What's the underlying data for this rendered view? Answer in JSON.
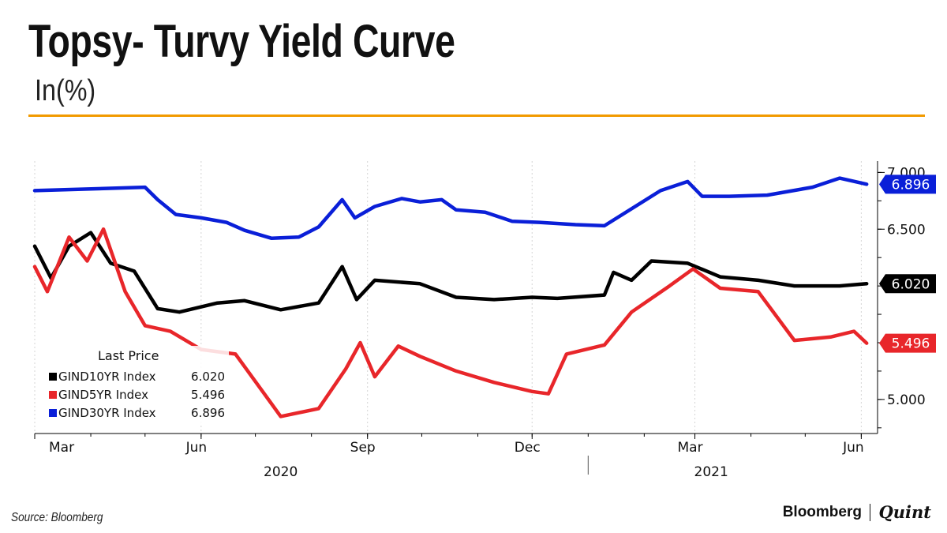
{
  "title": "Topsy- Turvy Yield Curve",
  "subtitle": "In(%)",
  "source": "Source: Bloomberg",
  "brand": {
    "primary": "Bloomberg",
    "secondary": "Quint"
  },
  "accent_color": "#f29a00",
  "chart_data": {
    "type": "line",
    "x_start": "2020-03-01",
    "x_end": "2021-06-10",
    "ylim": [
      4.7,
      7.1
    ],
    "yticks": [
      5.0,
      6.5,
      7.0
    ],
    "yticks_labels": [
      "5.000",
      "6.500",
      "7.000"
    ],
    "grid": true,
    "legend": {
      "title": "Last Price",
      "placement": "bottom-left",
      "entries": [
        {
          "label": "GIND10YR Index",
          "value": "6.020",
          "color": "#000000"
        },
        {
          "label": "GIND5YR Index",
          "value": "5.496",
          "color": "#e8262a"
        },
        {
          "label": "GIND30YR Index",
          "value": "6.896",
          "color": "#0a1fd8"
        }
      ]
    },
    "month_labels": [
      {
        "date": "2020-03-01",
        "label": "Mar"
      },
      {
        "date": "2020-06-01",
        "label": "Jun"
      },
      {
        "date": "2020-09-01",
        "label": "Sep"
      },
      {
        "date": "2020-12-01",
        "label": "Dec"
      },
      {
        "date": "2021-03-01",
        "label": "Mar"
      },
      {
        "date": "2021-06-01",
        "label": "Jun"
      }
    ],
    "year_labels": [
      {
        "date": "2020-07-15",
        "label": "2020"
      },
      {
        "date": "2021-03-10",
        "label": "2021"
      }
    ],
    "series": [
      {
        "name": "GIND30YR Index",
        "color": "#0a1fd8",
        "last": "6.896",
        "points": [
          [
            "2020-03-01",
            6.84
          ],
          [
            "2020-05-01",
            6.87
          ],
          [
            "2020-05-08",
            6.76
          ],
          [
            "2020-05-18",
            6.63
          ],
          [
            "2020-06-01",
            6.6
          ],
          [
            "2020-06-15",
            6.56
          ],
          [
            "2020-06-25",
            6.49
          ],
          [
            "2020-07-10",
            6.42
          ],
          [
            "2020-07-25",
            6.43
          ],
          [
            "2020-08-05",
            6.52
          ],
          [
            "2020-08-18",
            6.76
          ],
          [
            "2020-08-25",
            6.6
          ],
          [
            "2020-09-05",
            6.7
          ],
          [
            "2020-09-20",
            6.77
          ],
          [
            "2020-09-30",
            6.74
          ],
          [
            "2020-10-12",
            6.76
          ],
          [
            "2020-10-20",
            6.67
          ],
          [
            "2020-11-05",
            6.65
          ],
          [
            "2020-11-20",
            6.57
          ],
          [
            "2020-12-05",
            6.56
          ],
          [
            "2020-12-25",
            6.54
          ],
          [
            "2021-01-10",
            6.53
          ],
          [
            "2021-02-10",
            6.84
          ],
          [
            "2021-02-25",
            6.92
          ],
          [
            "2021-03-05",
            6.79
          ],
          [
            "2021-03-20",
            6.79
          ],
          [
            "2021-04-10",
            6.8
          ],
          [
            "2021-05-05",
            6.87
          ],
          [
            "2021-05-20",
            6.95
          ],
          [
            "2021-06-04",
            6.896
          ]
        ]
      },
      {
        "name": "GIND10YR Index",
        "color": "#000000",
        "last": "6.020",
        "points": [
          [
            "2020-03-01",
            6.35
          ],
          [
            "2020-03-10",
            6.07
          ],
          [
            "2020-03-20",
            6.35
          ],
          [
            "2020-04-01",
            6.47
          ],
          [
            "2020-04-12",
            6.2
          ],
          [
            "2020-04-25",
            6.13
          ],
          [
            "2020-05-08",
            5.8
          ],
          [
            "2020-05-20",
            5.77
          ],
          [
            "2020-06-10",
            5.85
          ],
          [
            "2020-06-25",
            5.87
          ],
          [
            "2020-07-15",
            5.79
          ],
          [
            "2020-08-05",
            5.85
          ],
          [
            "2020-08-18",
            6.17
          ],
          [
            "2020-08-26",
            5.88
          ],
          [
            "2020-09-05",
            6.05
          ],
          [
            "2020-09-30",
            6.02
          ],
          [
            "2020-10-20",
            5.9
          ],
          [
            "2020-11-10",
            5.88
          ],
          [
            "2020-12-01",
            5.9
          ],
          [
            "2020-12-15",
            5.89
          ],
          [
            "2021-01-10",
            5.92
          ],
          [
            "2021-01-15",
            6.12
          ],
          [
            "2021-01-25",
            6.05
          ],
          [
            "2021-02-05",
            6.22
          ],
          [
            "2021-02-25",
            6.2
          ],
          [
            "2021-03-15",
            6.08
          ],
          [
            "2021-04-05",
            6.05
          ],
          [
            "2021-04-25",
            6.0
          ],
          [
            "2021-05-20",
            6.0
          ],
          [
            "2021-06-04",
            6.02
          ]
        ]
      },
      {
        "name": "GIND5YR Index",
        "color": "#e8262a",
        "last": "5.496",
        "points": [
          [
            "2020-03-01",
            6.17
          ],
          [
            "2020-03-08",
            5.95
          ],
          [
            "2020-03-20",
            6.43
          ],
          [
            "2020-03-30",
            6.22
          ],
          [
            "2020-04-08",
            6.5
          ],
          [
            "2020-04-20",
            5.95
          ],
          [
            "2020-05-01",
            5.65
          ],
          [
            "2020-05-15",
            5.6
          ],
          [
            "2020-06-01",
            5.44
          ],
          [
            "2020-06-20",
            5.4
          ],
          [
            "2020-07-05",
            5.07
          ],
          [
            "2020-07-15",
            4.85
          ],
          [
            "2020-08-05",
            4.92
          ],
          [
            "2020-08-20",
            5.27
          ],
          [
            "2020-08-28",
            5.5
          ],
          [
            "2020-09-05",
            5.2
          ],
          [
            "2020-09-18",
            5.47
          ],
          [
            "2020-09-30",
            5.38
          ],
          [
            "2020-10-20",
            5.25
          ],
          [
            "2020-11-10",
            5.15
          ],
          [
            "2020-12-01",
            5.07
          ],
          [
            "2020-12-10",
            5.05
          ],
          [
            "2020-12-20",
            5.4
          ],
          [
            "2021-01-10",
            5.48
          ],
          [
            "2021-01-25",
            5.77
          ],
          [
            "2021-02-15",
            6.0
          ],
          [
            "2021-02-28",
            6.15
          ],
          [
            "2021-03-15",
            5.98
          ],
          [
            "2021-04-05",
            5.95
          ],
          [
            "2021-04-25",
            5.52
          ],
          [
            "2021-05-15",
            5.55
          ],
          [
            "2021-05-28",
            5.6
          ],
          [
            "2021-06-04",
            5.496
          ]
        ]
      }
    ]
  }
}
